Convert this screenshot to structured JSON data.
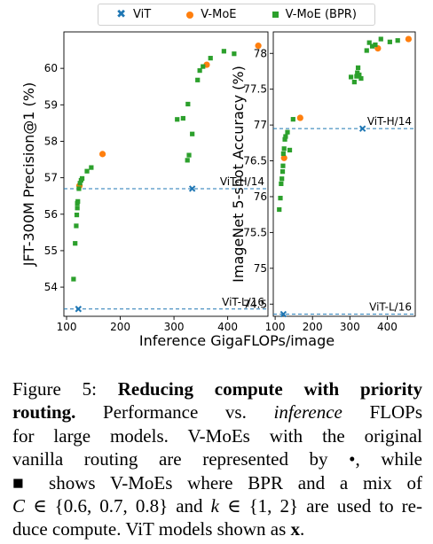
{
  "legend": {
    "vit_label": "ViT",
    "vmoe_label": "V-MoE",
    "bpr_label": "V-MoE (BPR)"
  },
  "colors": {
    "vit": "#1f77b4",
    "vmoe": "#ff7f0e",
    "bpr": "#2ca02c",
    "reference_line": "#1f77b4"
  },
  "shared_xlabel": "Inference GigaFLOPs/image",
  "chart_data": [
    {
      "type": "scatter",
      "ylabel": "JFT-300M Precision@1 (%)",
      "xlim": [
        95,
        475
      ],
      "ylim": [
        53.2,
        61.0
      ],
      "xticks": [
        100,
        200,
        300,
        400
      ],
      "yticks": [
        54,
        55,
        56,
        57,
        58,
        59,
        60
      ],
      "reference_lines": [
        {
          "label": "ViT-H/14",
          "y": 56.7
        },
        {
          "label": "ViT-L/16",
          "y": 53.4
        }
      ],
      "series": [
        {
          "name": "ViT",
          "marker": "x",
          "points": [
            [
              122,
              53.4
            ],
            [
              334,
              56.7
            ]
          ]
        },
        {
          "name": "V-MoE",
          "marker": "circle",
          "points": [
            [
              124,
              56.78
            ],
            [
              167,
              57.65
            ],
            [
              361,
              60.1
            ],
            [
              457,
              60.62
            ]
          ]
        },
        {
          "name": "V-MoE (BPR)",
          "marker": "square",
          "points": [
            [
              113,
              54.22
            ],
            [
              116,
              55.2
            ],
            [
              118,
              55.68
            ],
            [
              119,
              55.98
            ],
            [
              120,
              56.17
            ],
            [
              120,
              56.3
            ],
            [
              121,
              56.35
            ],
            [
              123,
              56.7
            ],
            [
              125,
              56.85
            ],
            [
              127,
              56.93
            ],
            [
              129,
              56.98
            ],
            [
              138,
              57.18
            ],
            [
              146,
              57.28
            ],
            [
              306,
              58.6
            ],
            [
              317,
              58.63
            ],
            [
              326,
              59.02
            ],
            [
              325,
              57.48
            ],
            [
              328,
              57.62
            ],
            [
              334,
              58.2
            ],
            [
              344,
              59.68
            ],
            [
              348,
              59.94
            ],
            [
              354,
              60.05
            ],
            [
              368,
              60.28
            ],
            [
              393,
              60.47
            ],
            [
              412,
              60.4
            ]
          ]
        }
      ]
    },
    {
      "type": "scatter",
      "ylabel": "ImageNet 5-shot Accuracy (%)",
      "xlim": [
        95,
        475
      ],
      "ylim": [
        74.33,
        78.3
      ],
      "xticks": [
        100,
        200,
        300,
        400
      ],
      "yticks": [
        74.5,
        75.0,
        75.5,
        76.0,
        76.5,
        77.0,
        77.5,
        78.0
      ],
      "reference_lines": [
        {
          "label": "ViT-H/14",
          "y": 76.95
        },
        {
          "label": "ViT-L/16",
          "y": 74.36
        }
      ],
      "series": [
        {
          "name": "ViT",
          "marker": "x",
          "points": [
            [
              122,
              74.36
            ],
            [
              334,
              76.95
            ]
          ]
        },
        {
          "name": "V-MoE",
          "marker": "circle",
          "points": [
            [
              124,
              76.54
            ],
            [
              167,
              77.1
            ],
            [
              375,
              78.07
            ],
            [
              457,
              78.2
            ]
          ]
        },
        {
          "name": "V-MoE (BPR)",
          "marker": "square",
          "points": [
            [
              111,
              75.82
            ],
            [
              114,
              75.98
            ],
            [
              116,
              76.18
            ],
            [
              118,
              76.25
            ],
            [
              120,
              76.35
            ],
            [
              121,
              76.43
            ],
            [
              122,
              76.6
            ],
            [
              124,
              76.67
            ],
            [
              126,
              76.8
            ],
            [
              128,
              76.84
            ],
            [
              133,
              76.9
            ],
            [
              139,
              76.65
            ],
            [
              148,
              77.08
            ],
            [
              303,
              77.67
            ],
            [
              312,
              77.6
            ],
            [
              318,
              77.68
            ],
            [
              320,
              77.73
            ],
            [
              322,
              77.8
            ],
            [
              325,
              77.7
            ],
            [
              330,
              77.65
            ],
            [
              345,
              78.04
            ],
            [
              352,
              78.15
            ],
            [
              360,
              78.1
            ],
            [
              368,
              78.12
            ],
            [
              383,
              78.2
            ],
            [
              407,
              78.16
            ],
            [
              428,
              78.18
            ]
          ]
        }
      ]
    }
  ],
  "caption": {
    "lines": [
      {
        "parts": [
          {
            "text": "Figure 5: ",
            "style": "normal"
          },
          {
            "text": "Reducing compute with priority",
            "style": "bold"
          }
        ]
      },
      {
        "parts": [
          {
            "text": "routing.",
            "style": "bold"
          },
          {
            "text": "  Performance vs. ",
            "style": "normal"
          },
          {
            "text": "inference",
            "style": "italic"
          },
          {
            "text": " FLOPs",
            "style": "normal"
          }
        ]
      },
      {
        "parts": [
          {
            "text": "for large models.  V-MoEs with the original",
            "style": "normal"
          }
        ]
      },
      {
        "parts": [
          {
            "text": "vanilla routing are represented by •, while",
            "style": "normal"
          }
        ]
      },
      {
        "parts": [
          {
            "text": "■ shows V-MoEs where BPR and a mix of",
            "style": "normal"
          }
        ]
      },
      {
        "parts": [
          {
            "text": "C",
            "style": "italic"
          },
          {
            "text": " ∈ {0.6, 0.7, 0.8} and ",
            "style": "normal"
          },
          {
            "text": "k",
            "style": "italic"
          },
          {
            "text": " ∈ {1, 2} are used to re-",
            "style": "normal"
          }
        ]
      },
      {
        "parts": [
          {
            "text": "duce compute. ViT models shown as ",
            "style": "normal"
          },
          {
            "text": "x",
            "style": "bold"
          },
          {
            "text": ".",
            "style": "normal"
          }
        ]
      }
    ]
  }
}
